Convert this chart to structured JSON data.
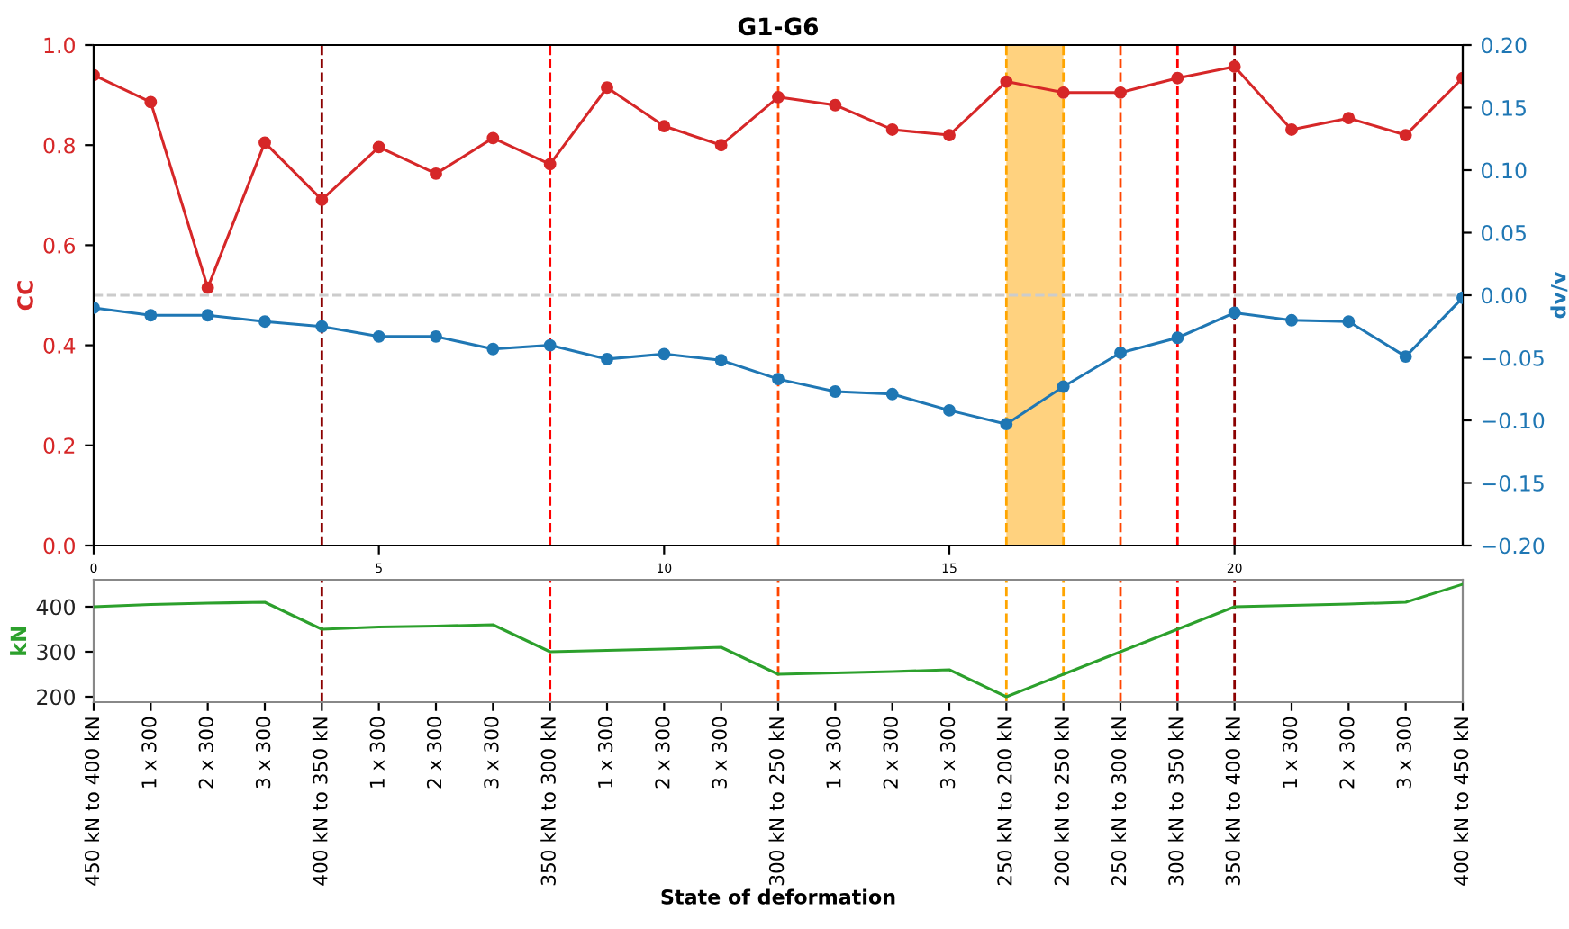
{
  "chart_data": [
    {
      "type": "line",
      "title": "G1-G6",
      "ylabel": "CC",
      "y2label": "dv/v",
      "marker": "circle",
      "grid": false,
      "legend": false,
      "x": [
        0,
        1,
        2,
        3,
        4,
        5,
        6,
        7,
        8,
        9,
        10,
        11,
        12,
        13,
        14,
        15,
        16,
        17,
        18,
        19,
        20,
        21,
        22,
        23,
        24
      ],
      "xlim": [
        0,
        24
      ],
      "xticks": [
        0,
        5,
        10,
        15,
        20
      ],
      "ylim": [
        0,
        1
      ],
      "yticks": [
        {
          "value": 0,
          "label": "0.0"
        },
        0.2,
        0.4,
        0.6,
        0.8,
        {
          "value": 1,
          "label": "1.0"
        }
      ],
      "y2lim": [
        -0.2,
        0.2
      ],
      "y2ticks": [
        {
          "value": -0.2,
          "label": "−0.20"
        },
        {
          "value": -0.15,
          "label": "−0.15"
        },
        {
          "value": -0.1,
          "label": "−0.10"
        },
        {
          "value": -0.05,
          "label": "−0.05"
        },
        {
          "value": 0,
          "label": "0.00"
        },
        0.05,
        {
          "value": 0.1,
          "label": "0.10"
        },
        0.15,
        {
          "value": 0.2,
          "label": "0.20"
        }
      ],
      "series": [
        {
          "color": "#d62728",
          "values": [
            0.94,
            0.886,
            0.515,
            0.805,
            0.691,
            0.796,
            0.743,
            0.814,
            0.762,
            0.915,
            0.838,
            0.8,
            0.896,
            0.88,
            0.831,
            0.82,
            0.927,
            0.905,
            0.905,
            0.934,
            0.957,
            0.831,
            0.854,
            0.82,
            0.934
          ]
        },
        {
          "color": "#1f77b4",
          "axis": "y2",
          "values": [
            -0.01,
            -0.016,
            -0.016,
            -0.021,
            -0.025,
            -0.033,
            -0.033,
            -0.043,
            -0.04,
            -0.051,
            -0.047,
            -0.052,
            -0.067,
            -0.077,
            -0.079,
            -0.092,
            -0.103,
            -0.073,
            -0.046,
            -0.034,
            -0.014,
            -0.02,
            -0.021,
            -0.049,
            -0.002
          ]
        }
      ],
      "ref_lines": [
        {
          "axis": "y2",
          "value": 0,
          "color": "#cccccc",
          "line_style": "dashed"
        },
        {
          "axis": "x",
          "value": 4,
          "color": "#8b0000",
          "line_style": "dashed"
        },
        {
          "axis": "x",
          "value": 8,
          "color": "#ff0000",
          "line_style": "dashed"
        },
        {
          "axis": "x",
          "value": 12,
          "color": "#ff4500",
          "line_style": "dashed"
        },
        {
          "axis": "x",
          "value": 16,
          "color": "#ffa500",
          "line_style": "dashed"
        },
        {
          "axis": "x",
          "value": 17,
          "color": "#ffa500",
          "line_style": "dashed"
        },
        {
          "axis": "x",
          "value": 18,
          "color": "#ff4500",
          "line_style": "dashed"
        },
        {
          "axis": "x",
          "value": 19,
          "color": "#ff0000",
          "line_style": "dashed"
        },
        {
          "axis": "x",
          "value": 20,
          "color": "#8b0000",
          "line_style": "dashed"
        }
      ],
      "bands": [
        {
          "axis": "x",
          "from": 16,
          "to": 17,
          "color": "#ffd27f"
        }
      ]
    },
    {
      "type": "line",
      "ylabel": "kN",
      "xlabel": "State of deformation",
      "marker": "none",
      "grid": false,
      "legend": false,
      "categories": [
        "450 kN to 400 kN",
        "1 x 300",
        "2 x 300",
        "3 x 300",
        "400 kN to 350 kN",
        "1 x 300",
        "2 x 300",
        "3 x 300",
        "350 kN to 300 kN",
        "1 x 300",
        "2 x 300",
        "3 x 300",
        "300 kN to 250 kN",
        "1 x 300",
        "2 x 300",
        "3 x 300",
        "250 kN to 200 kN",
        "200 kN to 250 kN",
        "250 kN to 300 kN",
        "300 kN to 350 kN",
        "350 kN to 400 kN",
        "1 x 300",
        "2 x 300",
        "3 x 300",
        "400 kN to 450 kN"
      ],
      "ylim": [
        188,
        460
      ],
      "yticks": [
        200,
        300,
        400
      ],
      "series": [
        {
          "color": "#2ca02c",
          "values": [
            400,
            405,
            408,
            410,
            350,
            355,
            357,
            360,
            300,
            303,
            306,
            310,
            250,
            253,
            256,
            260,
            200,
            250,
            300,
            350,
            400,
            403,
            406,
            410,
            450
          ]
        }
      ],
      "ref_lines": [
        {
          "axis": "x",
          "value": "400 kN to 350 kN",
          "color": "#8b0000",
          "line_style": "dashed"
        },
        {
          "axis": "x",
          "value": "350 kN to 300 kN",
          "color": "#ff0000",
          "line_style": "dashed"
        },
        {
          "axis": "x",
          "value": "300 kN to 250 kN",
          "color": "#ff4500",
          "line_style": "dashed"
        },
        {
          "axis": "x",
          "value": "250 kN to 200 kN",
          "color": "#ffa500",
          "line_style": "dashed"
        },
        {
          "axis": "x",
          "value": "200 kN to 250 kN",
          "color": "#ffa500",
          "line_style": "dashed"
        },
        {
          "axis": "x",
          "value": "250 kN to 300 kN",
          "color": "#ff4500",
          "line_style": "dashed"
        },
        {
          "axis": "x",
          "value": "300 kN to 350 kN",
          "color": "#ff0000",
          "line_style": "dashed"
        },
        {
          "axis": "x",
          "value": "350 kN to 400 kN",
          "color": "#8b0000",
          "line_style": "dashed"
        }
      ]
    }
  ]
}
